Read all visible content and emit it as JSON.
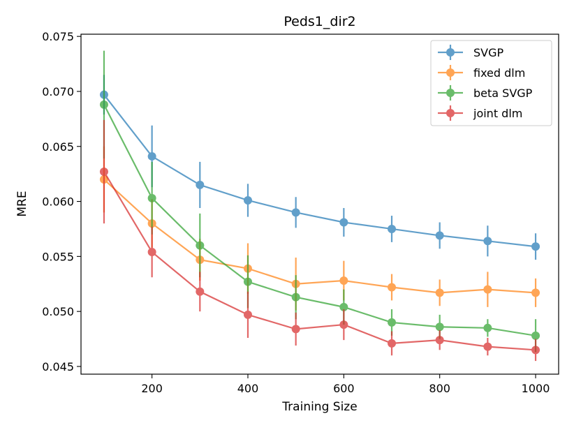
{
  "chart_data": {
    "type": "line",
    "title": "Peds1_dir2",
    "xlabel": "Training Size",
    "ylabel": "MRE",
    "xlim": [
      52,
      1048
    ],
    "ylim": [
      0.0443,
      0.0752
    ],
    "xticks": [
      200,
      400,
      600,
      800,
      1000
    ],
    "xtick_labels": [
      "200",
      "400",
      "600",
      "800",
      "1000"
    ],
    "yticks": [
      0.045,
      0.05,
      0.055,
      0.06,
      0.065,
      0.07,
      0.075
    ],
    "ytick_labels": [
      "0.045",
      "0.050",
      "0.055",
      "0.060",
      "0.065",
      "0.070",
      "0.075"
    ],
    "legend_position": "top-right",
    "x": [
      100,
      200,
      300,
      400,
      500,
      600,
      700,
      800,
      900,
      1000
    ],
    "series": [
      {
        "name": "SVGP",
        "color": "#1f77b4",
        "values": [
          0.0697,
          0.0641,
          0.0615,
          0.0601,
          0.059,
          0.0581,
          0.0575,
          0.0569,
          0.0564,
          0.0559
        ],
        "errors": [
          0.0018,
          0.0028,
          0.0021,
          0.0015,
          0.0014,
          0.0013,
          0.0012,
          0.0012,
          0.0014,
          0.0012
        ]
      },
      {
        "name": "fixed dlm",
        "color": "#ff7f0e",
        "values": [
          0.062,
          0.058,
          0.0547,
          0.0539,
          0.0525,
          0.0528,
          0.0522,
          0.0517,
          0.052,
          0.0517
        ],
        "errors": [
          0.003,
          0.0022,
          0.0019,
          0.0023,
          0.0024,
          0.0018,
          0.0012,
          0.0012,
          0.0016,
          0.0013
        ]
      },
      {
        "name": "beta SVGP",
        "color": "#2ca02c",
        "values": [
          0.0688,
          0.0603,
          0.056,
          0.0527,
          0.0513,
          0.0504,
          0.049,
          0.0486,
          0.0485,
          0.0478
        ],
        "errors": [
          0.0049,
          0.0033,
          0.0029,
          0.0024,
          0.002,
          0.0016,
          0.0012,
          0.0011,
          0.0008,
          0.0015
        ]
      },
      {
        "name": "joint dlm",
        "color": "#d62728",
        "values": [
          0.0627,
          0.0554,
          0.0518,
          0.0497,
          0.0484,
          0.0488,
          0.0471,
          0.0474,
          0.0468,
          0.0465
        ],
        "errors": [
          0.0047,
          0.0023,
          0.0018,
          0.0021,
          0.0015,
          0.0014,
          0.0011,
          0.0009,
          0.0008,
          0.001
        ]
      }
    ]
  }
}
